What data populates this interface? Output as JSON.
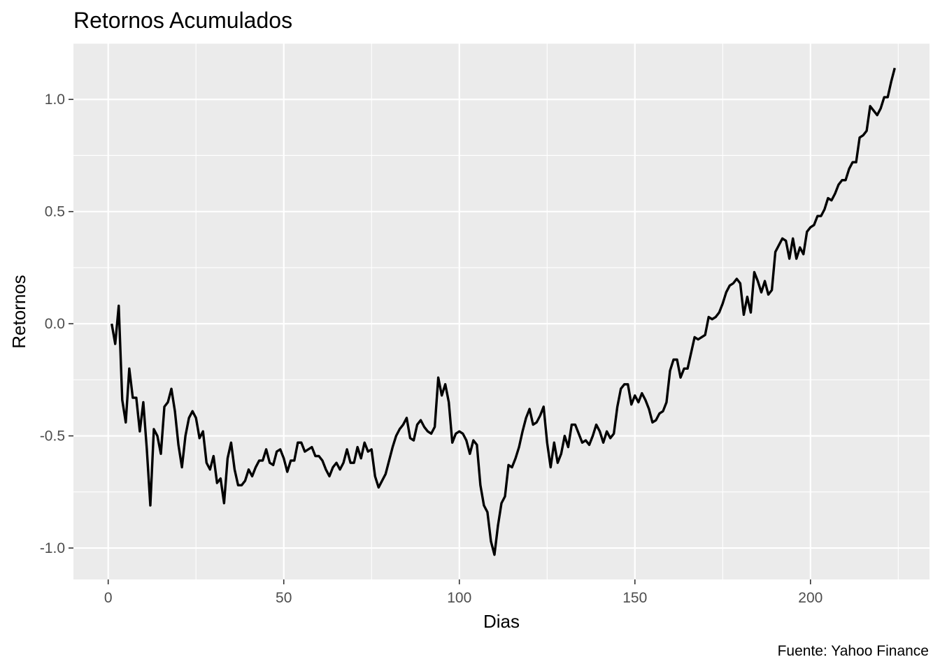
{
  "chart_data": {
    "type": "line",
    "title": "Retornos Acumulados",
    "xlabel": "Dias",
    "ylabel": "Retornos",
    "caption": "Fuente: Yahoo Finance",
    "xlim": [
      -9.9,
      233.9
    ],
    "ylim": [
      -1.14,
      1.25
    ],
    "x_ticks": [
      0,
      50,
      100,
      150,
      200
    ],
    "x_tick_labels": [
      "0",
      "50",
      "100",
      "150",
      "200"
    ],
    "y_ticks": [
      -1.0,
      -0.5,
      0.0,
      0.5,
      1.0
    ],
    "y_tick_labels": [
      "-1.0",
      "-0.5",
      "0.0",
      "0.5",
      "1.0"
    ],
    "grid": true,
    "legend": "none",
    "colors": {
      "panel": "#ebebeb",
      "grid": "#ffffff",
      "line": "#000000",
      "tick": "#4d4d4d"
    },
    "series": [
      {
        "values": [
          0.0,
          -0.09,
          0.08,
          -0.34,
          -0.44,
          -0.2,
          -0.33,
          -0.33,
          -0.48,
          -0.35,
          -0.56,
          -0.81,
          -0.47,
          -0.5,
          -0.58,
          -0.37,
          -0.35,
          -0.29,
          -0.39,
          -0.54,
          -0.64,
          -0.5,
          -0.42,
          -0.39,
          -0.42,
          -0.51,
          -0.48,
          -0.62,
          -0.65,
          -0.59,
          -0.71,
          -0.69,
          -0.8,
          -0.6,
          -0.53,
          -0.65,
          -0.72,
          -0.72,
          -0.7,
          -0.65,
          -0.68,
          -0.64,
          -0.61,
          -0.61,
          -0.56,
          -0.62,
          -0.63,
          -0.57,
          -0.56,
          -0.6,
          -0.66,
          -0.61,
          -0.61,
          -0.53,
          -0.53,
          -0.57,
          -0.56,
          -0.55,
          -0.59,
          -0.59,
          -0.61,
          -0.65,
          -0.68,
          -0.64,
          -0.62,
          -0.65,
          -0.62,
          -0.56,
          -0.62,
          -0.62,
          -0.55,
          -0.6,
          -0.53,
          -0.57,
          -0.56,
          -0.68,
          -0.73,
          -0.7,
          -0.67,
          -0.61,
          -0.55,
          -0.5,
          -0.47,
          -0.45,
          -0.42,
          -0.51,
          -0.52,
          -0.45,
          -0.43,
          -0.46,
          -0.48,
          -0.49,
          -0.46,
          -0.24,
          -0.32,
          -0.27,
          -0.35,
          -0.53,
          -0.49,
          -0.48,
          -0.49,
          -0.52,
          -0.58,
          -0.52,
          -0.54,
          -0.72,
          -0.81,
          -0.84,
          -0.97,
          -1.03,
          -0.9,
          -0.8,
          -0.77,
          -0.63,
          -0.64,
          -0.6,
          -0.55,
          -0.48,
          -0.42,
          -0.38,
          -0.45,
          -0.44,
          -0.41,
          -0.37,
          -0.53,
          -0.64,
          -0.53,
          -0.62,
          -0.58,
          -0.5,
          -0.55,
          -0.45,
          -0.45,
          -0.49,
          -0.53,
          -0.52,
          -0.54,
          -0.5,
          -0.45,
          -0.48,
          -0.53,
          -0.48,
          -0.51,
          -0.49,
          -0.37,
          -0.29,
          -0.27,
          -0.27,
          -0.36,
          -0.32,
          -0.35,
          -0.31,
          -0.34,
          -0.38,
          -0.44,
          -0.43,
          -0.4,
          -0.39,
          -0.35,
          -0.21,
          -0.16,
          -0.16,
          -0.24,
          -0.2,
          -0.2,
          -0.13,
          -0.06,
          -0.07,
          -0.06,
          -0.05,
          0.03,
          0.02,
          0.03,
          0.05,
          0.09,
          0.14,
          0.17,
          0.18,
          0.2,
          0.18,
          0.04,
          0.12,
          0.05,
          0.23,
          0.19,
          0.14,
          0.19,
          0.13,
          0.15,
          0.32,
          0.35,
          0.38,
          0.37,
          0.29,
          0.38,
          0.29,
          0.34,
          0.31,
          0.41,
          0.43,
          0.44,
          0.48,
          0.48,
          0.51,
          0.56,
          0.55,
          0.58,
          0.62,
          0.64,
          0.64,
          0.69,
          0.72,
          0.72,
          0.83,
          0.84,
          0.86,
          0.97,
          0.95,
          0.93,
          0.96,
          1.01,
          1.01,
          1.08,
          1.14
        ]
      }
    ]
  }
}
